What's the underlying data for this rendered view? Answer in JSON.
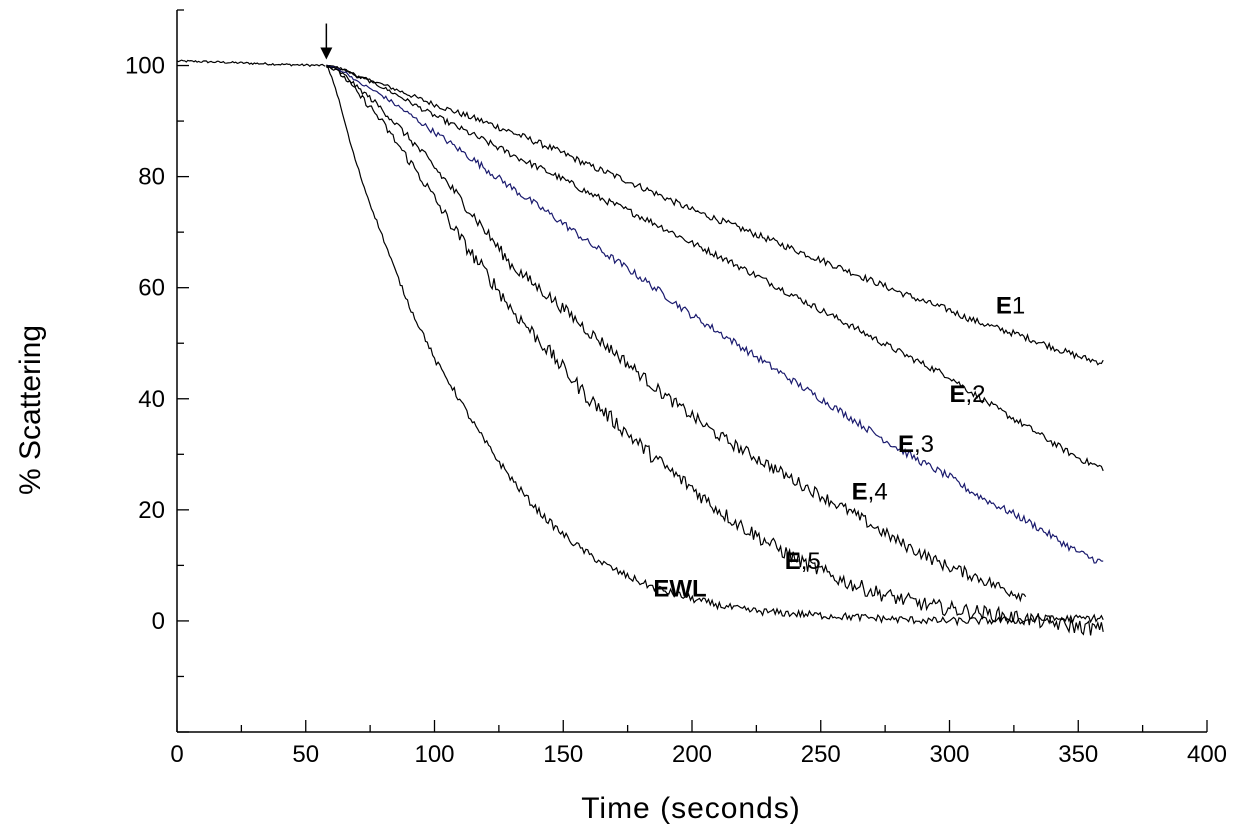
{
  "chart_data": {
    "type": "line",
    "title": "",
    "xlabel": "Time (seconds)",
    "ylabel": "% Scattering",
    "xlim": [
      0,
      400
    ],
    "ylim": [
      -20,
      110
    ],
    "xticks": [
      0,
      50,
      100,
      150,
      200,
      250,
      300,
      350,
      400
    ],
    "yticks": [
      0,
      20,
      40,
      60,
      80,
      100
    ],
    "grid": false,
    "legend": "none",
    "annotations": [
      {
        "type": "arrow",
        "x": 58,
        "y": 100,
        "direction": "down"
      }
    ],
    "series": [
      {
        "name": "E1",
        "label_bold": "E",
        "label_rest": "1",
        "label_xy": [
          318,
          57
        ],
        "color": "#000000",
        "noise": 0.45,
        "x": [
          58,
          70,
          100,
          130,
          160,
          200,
          250,
          300,
          330,
          360
        ],
        "y": [
          100,
          98,
          93,
          88,
          82,
          74,
          65,
          56,
          51,
          46.5
        ]
      },
      {
        "name": "E,2",
        "label_bold": "E",
        "label_rest": ",2",
        "label_xy": [
          300,
          41
        ],
        "color": "#000000",
        "noise": 0.45,
        "x": [
          58,
          70,
          100,
          130,
          160,
          200,
          250,
          300,
          330,
          360
        ],
        "y": [
          100,
          98,
          91,
          84,
          77,
          68,
          56,
          44,
          35,
          27.5
        ]
      },
      {
        "name": "E,3",
        "label_bold": "E",
        "label_rest": ",3",
        "label_xy": [
          280,
          32
        ],
        "color": "#1a1a6e",
        "noise": 0.5,
        "x": [
          58,
          70,
          100,
          130,
          160,
          200,
          250,
          300,
          330,
          360
        ],
        "y": [
          100,
          97,
          88,
          78,
          68,
          55,
          40,
          26,
          18,
          10.5
        ]
      },
      {
        "name": "E,4",
        "label_bold": "E",
        "label_rest": ",4",
        "label_xy": [
          262,
          23.5
        ],
        "color": "#000000",
        "noise": 0.8,
        "x": [
          58,
          70,
          90,
          110,
          130,
          160,
          200,
          230,
          260,
          290,
          310,
          330
        ],
        "y": [
          100,
          96,
          87,
          76,
          64,
          52,
          37,
          28,
          20,
          12,
          8,
          4.5
        ]
      },
      {
        "name": "E,5",
        "label_bold": "E",
        "label_rest": ",5",
        "label_xy": [
          236,
          11
        ],
        "color": "#000000",
        "noise": 1.0,
        "x": [
          58,
          70,
          90,
          110,
          130,
          160,
          200,
          230,
          260,
          290,
          320,
          360
        ],
        "y": [
          100,
          95,
          83,
          69,
          56,
          40,
          24,
          14,
          7,
          3,
          1,
          -1.5
        ]
      },
      {
        "name": "EWL",
        "label_bold": "EWL",
        "label_rest": "",
        "label_xy": [
          185,
          6
        ],
        "color": "#000000",
        "noise": 0.5,
        "x": [
          58,
          70,
          80,
          90,
          100,
          120,
          140,
          160,
          180,
          200,
          220,
          250,
          300,
          360
        ],
        "y": [
          100,
          82,
          69,
          57,
          47,
          32,
          20,
          12,
          7,
          4,
          2,
          1,
          0,
          0.5
        ]
      }
    ],
    "baseline": {
      "x": [
        0,
        58
      ],
      "y": [
        100.8,
        100
      ]
    }
  }
}
